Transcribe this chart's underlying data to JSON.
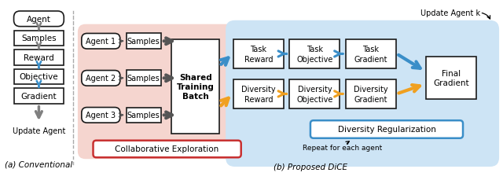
{
  "title_a": "(a) Conventional",
  "title_b": "(b) Proposed DiCE",
  "conv_boxes": [
    "Agent",
    "Samples",
    "Reward",
    "Objective",
    "Gradient"
  ],
  "conv_bottom_label": "Update Agent",
  "agents": [
    "Agent 1",
    "Agent 2",
    "Agent 3"
  ],
  "collab_label": "Collaborative Exploration",
  "shared_batch_label": "Shared\nTraining\nBatch",
  "task_boxes": [
    "Task\nReward",
    "Task\nObjective",
    "Task\nGradient"
  ],
  "diversity_boxes": [
    "Diversity\nReward",
    "Diversity\nObjective",
    "Diversity\nGradient"
  ],
  "final_box": "Final\nGradient",
  "div_reg_label": "Diversity Regularization",
  "repeat_label": "Repeat for each agent",
  "update_agent_k": "Update Agent k",
  "bg_pink": "#f5d5cf",
  "bg_blue": "#cde4f5",
  "color_blue": "#3a8ec8",
  "color_orange": "#f0a020",
  "color_gray": "#808080",
  "color_darkgray": "#555555",
  "color_red": "#c83030",
  "box_edge": "#1a1a1a",
  "sep_color": "#aaaaaa"
}
